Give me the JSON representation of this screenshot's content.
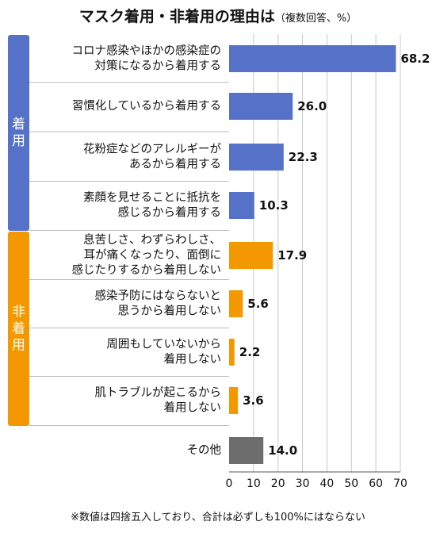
{
  "title": "マスク着用・非着用の理由は",
  "subtitle": "（複数回答、%）",
  "footnote": "※数値は四捨五入しており、合計は必ずしも100%にはならない",
  "colors": {
    "wear": "#5672c8",
    "nonwear": "#f39800",
    "other": "#6d6d6d",
    "grid": "#c8c8c8",
    "separator": "#bdbdbd"
  },
  "chart_data": {
    "type": "bar",
    "orientation": "horizontal",
    "groups": [
      {
        "label": "着用",
        "color": "#5672c8",
        "start": 0,
        "end": 3
      },
      {
        "label": "非着用",
        "color": "#f39800",
        "start": 4,
        "end": 7
      }
    ],
    "categories": [
      [
        "コロナ感染やほかの感染症の",
        "対策になるから着用する"
      ],
      [
        "習慣化しているから着用する"
      ],
      [
        "花粉症などのアレルギーが",
        "あるから着用する"
      ],
      [
        "素顔を見せることに抵抗を",
        "感じるから着用する"
      ],
      [
        "息苦しさ、わずらわしさ、",
        "耳が痛くなったり、面倒に",
        "感じたりするから着用しない"
      ],
      [
        "感染予防にはならないと",
        "思うから着用しない"
      ],
      [
        "周囲もしていないから",
        "着用しない"
      ],
      [
        "肌トラブルが起こるから",
        "着用しない"
      ],
      [
        "その他"
      ]
    ],
    "values": [
      68.2,
      26.0,
      22.3,
      10.3,
      17.9,
      5.6,
      2.2,
      3.6,
      14.0
    ],
    "value_labels": [
      "68.2",
      "26.0",
      "22.3",
      "10.3",
      "17.9",
      "5.6",
      "2.2",
      "3.6",
      "14.0"
    ],
    "bar_colors": [
      "#5672c8",
      "#5672c8",
      "#5672c8",
      "#5672c8",
      "#f39800",
      "#f39800",
      "#f39800",
      "#f39800",
      "#6d6d6d"
    ],
    "xlim": [
      0,
      70
    ],
    "xticks": [
      0,
      10,
      20,
      30,
      40,
      50,
      60,
      70
    ],
    "grid": true
  }
}
